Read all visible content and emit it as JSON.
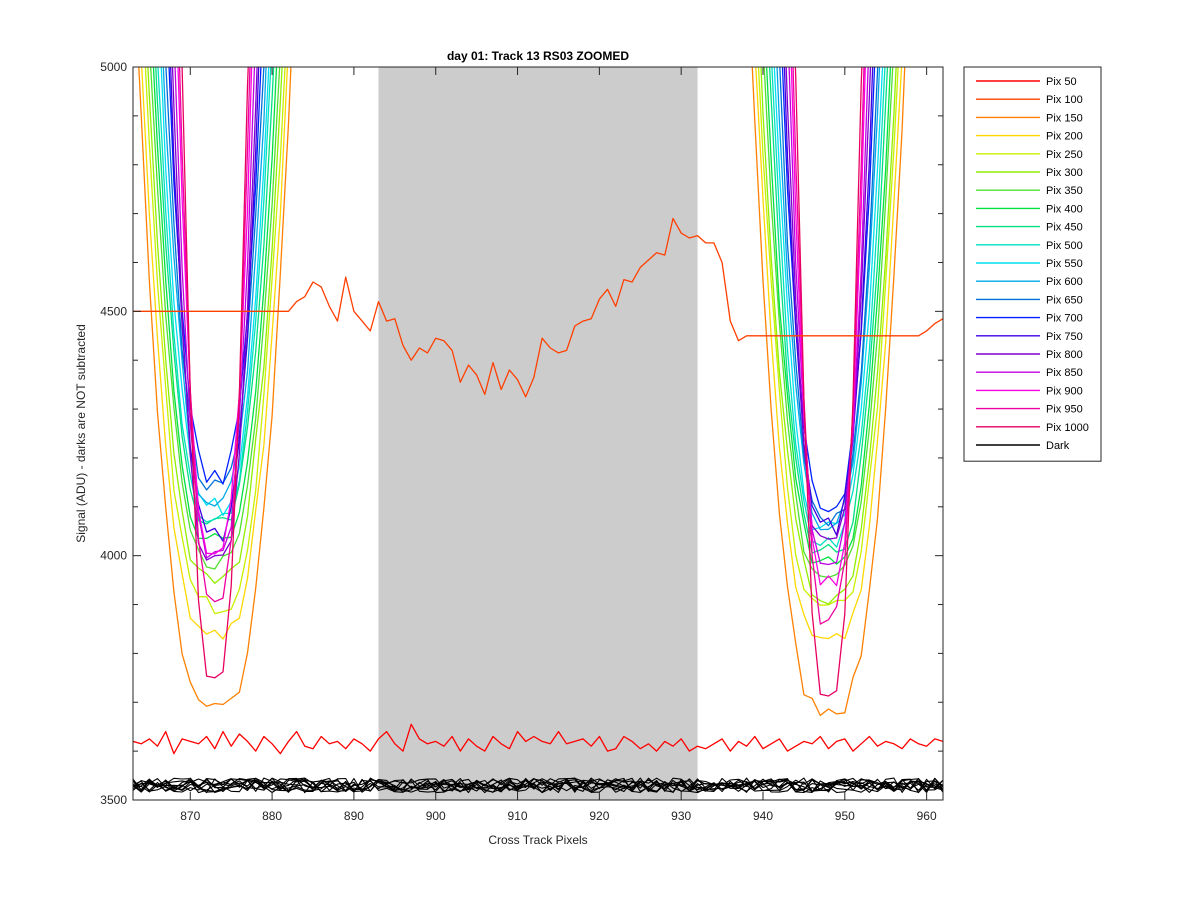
{
  "chart_data": {
    "type": "line",
    "title": "day 01: Track 13  RS03 ZOOMED",
    "xlabel": "Cross Track Pixels",
    "ylabel": "Signal (ADU) - darks are NOT subtracted",
    "xlim": [
      863,
      962
    ],
    "ylim": [
      3500,
      5000
    ],
    "xticks": [
      870,
      880,
      890,
      900,
      910,
      920,
      930,
      940,
      950,
      960
    ],
    "yticks": [
      3500,
      4000,
      4500,
      5000
    ],
    "shaded_region": {
      "x_start": 893,
      "x_end": 932,
      "color": "#cccccc"
    },
    "grid": false,
    "legend_position": "outside-right-top",
    "series": [
      {
        "name": "Pix 50",
        "color": "#ff0000",
        "shape": "flat",
        "level": 3620,
        "values": [
          3620,
          3615,
          3625,
          3610,
          3640,
          3595,
          3625,
          3620,
          3615,
          3630,
          3605,
          3640,
          3610,
          3635,
          3620,
          3600,
          3630,
          3615,
          3595,
          3620,
          3640,
          3610,
          3605,
          3630,
          3615,
          3620,
          3605,
          3625,
          3615,
          3600,
          3625,
          3640,
          3615,
          3600,
          3655,
          3625,
          3615,
          3620,
          3610,
          3630,
          3600,
          3625,
          3610,
          3600,
          3630,
          3615,
          3605,
          3640,
          3620,
          3630,
          3620,
          3615,
          3640,
          3615,
          3620,
          3625,
          3610,
          3630,
          3600,
          3605,
          3630,
          3620,
          3605,
          3615,
          3600,
          3620,
          3610,
          3625,
          3600,
          3610,
          3605,
          3615,
          3625,
          3600,
          3620,
          3610,
          3630,
          3605,
          3615,
          3625,
          3600,
          3610,
          3620,
          3615,
          3630,
          3605,
          3620,
          3625,
          3600,
          3615,
          3630,
          3610,
          3620,
          3615,
          3605,
          3625,
          3615,
          3610,
          3625,
          3620
        ]
      },
      {
        "name": "Pix 100",
        "color": "#ff4000",
        "shape": "top",
        "level": 4500,
        "values": [
          4500,
          4500,
          4500,
          4500,
          4500,
          4500,
          4500,
          4500,
          4500,
          4500,
          4500,
          4500,
          4500,
          4500,
          4500,
          4500,
          4500,
          4500,
          4500,
          4500,
          4520,
          4530,
          4560,
          4550,
          4510,
          4480,
          4570,
          4500,
          4480,
          4460,
          4520,
          4480,
          4485,
          4430,
          4400,
          4425,
          4415,
          4445,
          4440,
          4420,
          4355,
          4390,
          4370,
          4330,
          4395,
          4340,
          4380,
          4360,
          4325,
          4365,
          4445,
          4425,
          4415,
          4420,
          4470,
          4480,
          4485,
          4525,
          4545,
          4510,
          4565,
          4560,
          4590,
          4605,
          4620,
          4615,
          4690,
          4660,
          4650,
          4655,
          4640,
          4640,
          4600,
          4480,
          4440,
          4450,
          4450,
          4450,
          4450,
          4450,
          4450,
          4450,
          4450,
          4450,
          4450,
          4450,
          4450,
          4450,
          4450,
          4450,
          4450,
          4450,
          4450,
          4450,
          4450,
          4450,
          4450,
          4460,
          4475,
          4485
        ]
      },
      {
        "name": "Pix 150",
        "color": "#ff8000",
        "shape": "dip",
        "dip1": 3690,
        "dip2": 3690
      },
      {
        "name": "Pix 200",
        "color": "#ffd700",
        "shape": "dip",
        "dip1": 3840,
        "dip2": 3830
      },
      {
        "name": "Pix 250",
        "color": "#c8f000",
        "shape": "dip",
        "dip1": 3900,
        "dip2": 3890
      },
      {
        "name": "Pix 300",
        "color": "#90ee00",
        "shape": "dip",
        "dip1": 3950,
        "dip2": 3920
      },
      {
        "name": "Pix 350",
        "color": "#50e030",
        "shape": "dip",
        "dip1": 3990,
        "dip2": 3960
      },
      {
        "name": "Pix 400",
        "color": "#00e040",
        "shape": "dip",
        "dip1": 4030,
        "dip2": 3980
      },
      {
        "name": "Pix 450",
        "color": "#00e080",
        "shape": "dip",
        "dip1": 4060,
        "dip2": 4010
      },
      {
        "name": "Pix 500",
        "color": "#00e0c0",
        "shape": "dip",
        "dip1": 4080,
        "dip2": 4030
      },
      {
        "name": "Pix 550",
        "color": "#00e0f0",
        "shape": "dip",
        "dip1": 4100,
        "dip2": 4050
      },
      {
        "name": "Pix 600",
        "color": "#00a8e8",
        "shape": "dip",
        "dip1": 4120,
        "dip2": 4070
      },
      {
        "name": "Pix 650",
        "color": "#0070d8",
        "shape": "dip",
        "dip1": 4140,
        "dip2": 4080
      },
      {
        "name": "Pix 700",
        "color": "#0020ff",
        "shape": "dip",
        "dip1": 4160,
        "dip2": 4100
      },
      {
        "name": "Pix 750",
        "color": "#4000e0",
        "shape": "dip",
        "dip1": 4040,
        "dip2": 4060
      },
      {
        "name": "Pix 800",
        "color": "#8000d0",
        "shape": "dip",
        "dip1": 3980,
        "dip2": 4020
      },
      {
        "name": "Pix 850",
        "color": "#c000e0",
        "shape": "dip",
        "dip1": 4000,
        "dip2": 3990
      },
      {
        "name": "Pix 900",
        "color": "#ff00e0",
        "shape": "dip",
        "dip1": 4010,
        "dip2": 3940
      },
      {
        "name": "Pix 950",
        "color": "#f000a0",
        "shape": "dip",
        "dip1": 3900,
        "dip2": 3870
      },
      {
        "name": "Pix 1000",
        "color": "#e80060",
        "shape": "dip",
        "dip1": 3740,
        "dip2": 3720
      },
      {
        "name": "Dark",
        "color": "#000000",
        "shape": "dark",
        "level": 3530
      }
    ]
  }
}
